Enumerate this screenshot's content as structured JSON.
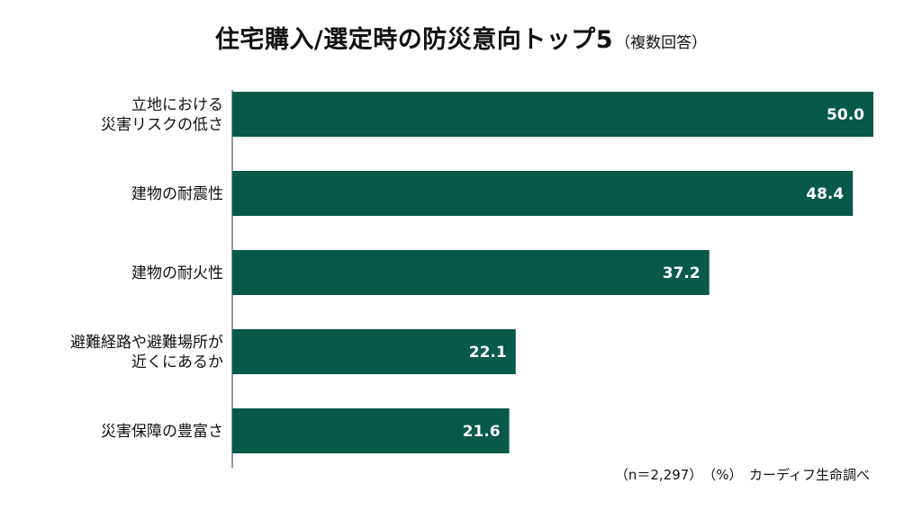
{
  "chart_data": {
    "type": "bar",
    "orientation": "horizontal",
    "title": "住宅購入/選定時の防災意向トップ5",
    "subtitle": "（複数回答）",
    "categories": [
      [
        "立地における",
        "災害リスクの低さ"
      ],
      [
        "建物の耐震性"
      ],
      [
        "建物の耐火性"
      ],
      [
        "避難経路や避難場所が",
        "近くにあるか"
      ],
      [
        "災害保障の豊富さ"
      ]
    ],
    "values": [
      50.0,
      48.4,
      37.2,
      22.1,
      21.6
    ],
    "value_labels": [
      "50.0",
      "48.4",
      "37.2",
      "22.1",
      "21.6"
    ],
    "xlim": [
      0,
      50
    ],
    "grid": false,
    "bar_color": "#065a47"
  },
  "footnote": "（n＝2,297）　（%）　カーディフ生命調べ"
}
